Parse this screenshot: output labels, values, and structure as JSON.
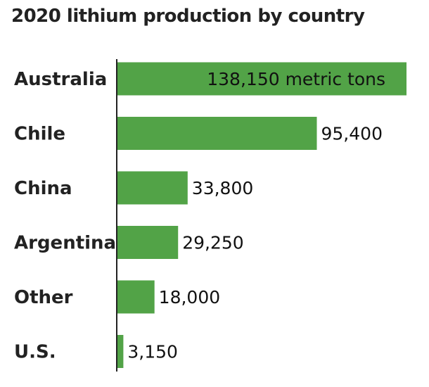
{
  "chart_data": {
    "type": "bar",
    "orientation": "horizontal",
    "title": "2020 lithium production by country",
    "categories": [
      "Australia",
      "Chile",
      "China",
      "Argentina",
      "Other",
      "U.S."
    ],
    "values": [
      138150,
      95400,
      33800,
      29250,
      18000,
      3150
    ],
    "value_labels": [
      "138,150 metric tons",
      "95,400",
      "33,800",
      "29,250",
      "18,000",
      "3,150"
    ],
    "xlim": [
      0,
      138150
    ],
    "xlabel": "",
    "ylabel": "",
    "grid": false,
    "legend": "none",
    "colors": {
      "bar": "#52a347",
      "axis": "#222222",
      "text": "#222222"
    }
  }
}
